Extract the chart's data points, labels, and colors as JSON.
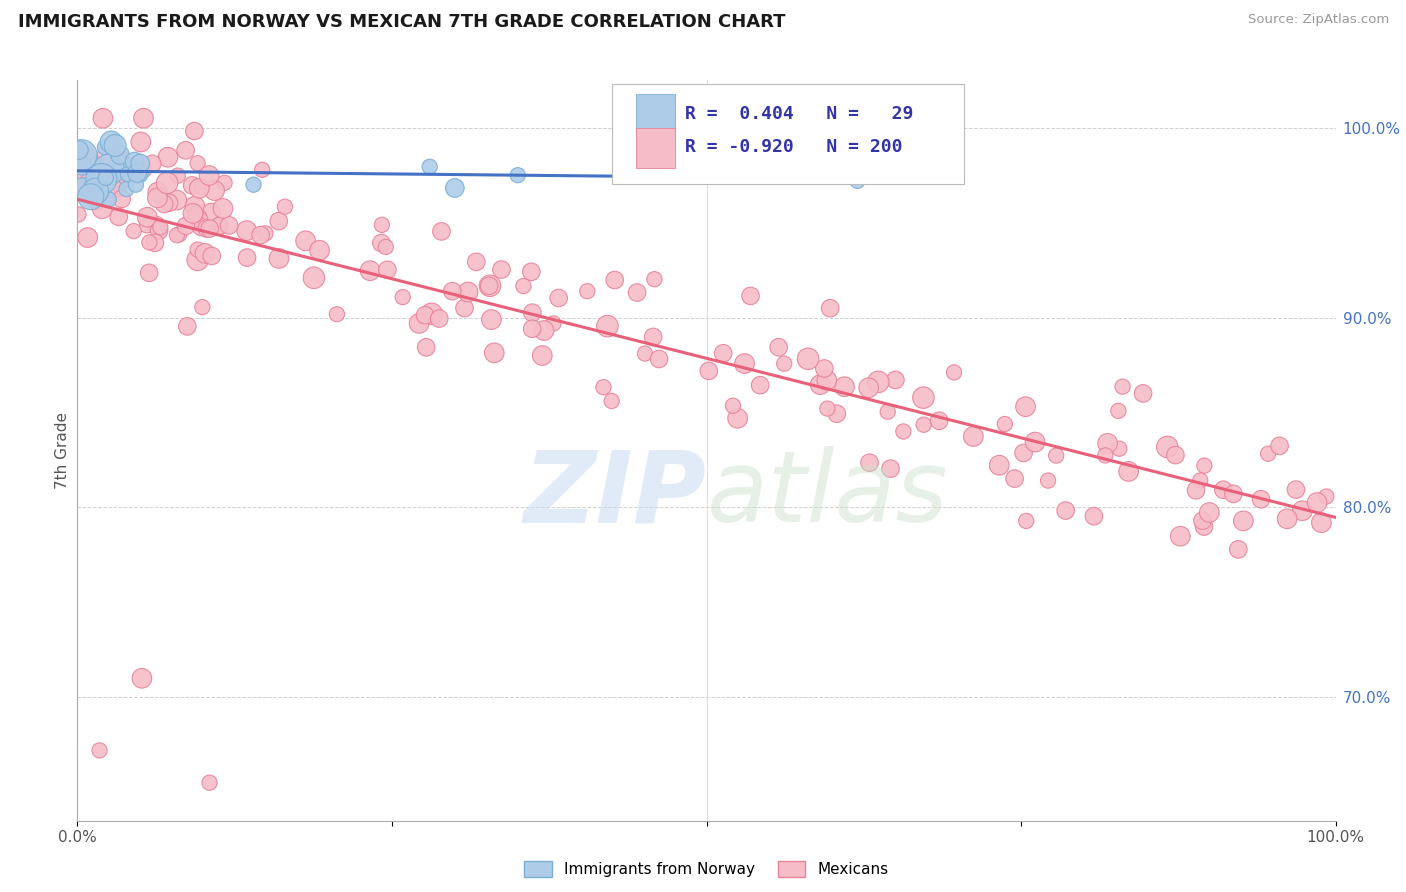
{
  "title": "IMMIGRANTS FROM NORWAY VS MEXICAN 7TH GRADE CORRELATION CHART",
  "source_text": "Source: ZipAtlas.com",
  "ylabel": "7th Grade",
  "norway_color": "#aecce8",
  "norway_edge": "#7aafd4",
  "mexico_color": "#f5bdc8",
  "mexico_edge": "#e8829a",
  "trend_norway_color": "#4472c4",
  "trend_mexico_color": "#e8607a",
  "norway_r": 0.404,
  "norway_n": 29,
  "mexico_r": -0.92,
  "mexico_n": 200,
  "xlim": [
    0.0,
    1.0
  ],
  "ylim": [
    0.635,
    1.025
  ],
  "y_ticks_right": [
    0.7,
    0.8,
    0.9,
    1.0
  ],
  "y_tick_labels_right": [
    "70.0%",
    "80.0%",
    "90.0%",
    "100.0%"
  ],
  "watermark_zip": "ZIP",
  "watermark_atlas": "atlas",
  "background_color": "#ffffff",
  "grid_color": "#d0d0d0",
  "legend_r1_val": "0.404",
  "legend_n1_val": "29",
  "legend_r2_val": "-0.920",
  "legend_n2_val": "200"
}
